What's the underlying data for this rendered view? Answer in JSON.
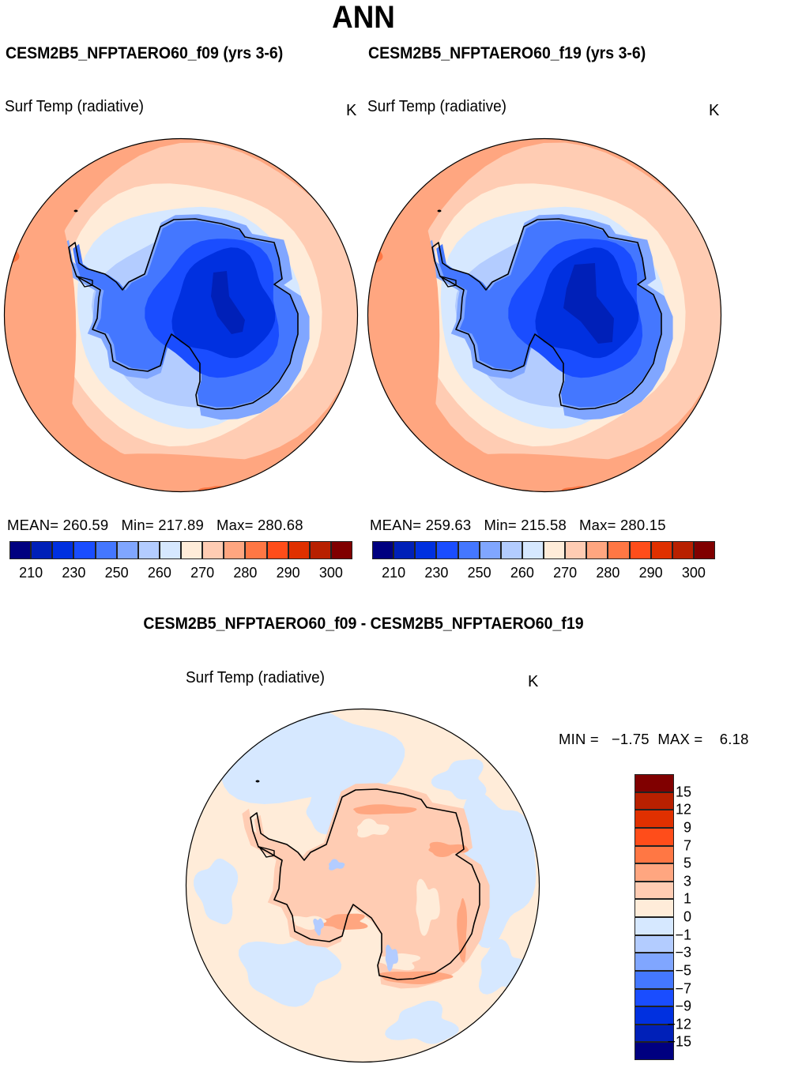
{
  "title": "ANN",
  "panels": [
    {
      "case_title": "CESM2B5_NFPTAERO60_f09 (yrs 3-6)",
      "variable": "Surf Temp (radiative)",
      "units": "K",
      "stats": {
        "mean_label": "MEAN=",
        "mean": "260.59",
        "min_label": "Min=",
        "min": "217.89",
        "max_label": "Max=",
        "max": "280.68"
      }
    },
    {
      "case_title": "CESM2B5_NFPTAERO60_f19 (yrs 3-6)",
      "variable": "Surf Temp (radiative)",
      "units": "K",
      "stats": {
        "mean_label": "MEAN=",
        "mean": "259.63",
        "min_label": "Min=",
        "min": "215.58",
        "max_label": "Max=",
        "max": "280.15"
      }
    }
  ],
  "diff_panel": {
    "title": "CESM2B5_NFPTAERO60_f09 - CESM2B5_NFPTAERO60_f19",
    "variable": "Surf Temp (radiative)",
    "units": "K",
    "minmax_text": "MIN =   −1.75  MAX =    6.18"
  },
  "colorbar_abs": {
    "levels": [
      210,
      220,
      230,
      240,
      250,
      255,
      260,
      265,
      270,
      275,
      280,
      285,
      290,
      295,
      300
    ],
    "labels": [
      "210",
      "230",
      "250",
      "260",
      "270",
      "280",
      "290",
      "300"
    ],
    "label_level_index": [
      0,
      2,
      4,
      6,
      8,
      10,
      12,
      14
    ],
    "colors": [
      "#000080",
      "#0020b8",
      "#0030e0",
      "#1a4dff",
      "#4477ff",
      "#80a6ff",
      "#b3ccff",
      "#d6e8ff",
      "#ffecd9",
      "#ffccb3",
      "#ffa680",
      "#ff7744",
      "#ff4d1a",
      "#e03000",
      "#b82000",
      "#800000"
    ]
  },
  "colorbar_diff": {
    "levels": [
      -15,
      -12,
      -9,
      -7,
      -5,
      -3,
      -1,
      0,
      1,
      3,
      5,
      7,
      9,
      12,
      15
    ],
    "labels": [
      "−15",
      "−12",
      "−9",
      "−7",
      "−5",
      "−3",
      "−1",
      "0",
      "1",
      "3",
      "5",
      "7",
      "9",
      "12",
      "15"
    ],
    "colors": [
      "#000080",
      "#0020b8",
      "#0030e0",
      "#1a4dff",
      "#4477ff",
      "#80a6ff",
      "#b3ccff",
      "#d6e8ff",
      "#ffecd9",
      "#ffccb3",
      "#ffa680",
      "#ff7744",
      "#ff4d1a",
      "#e03000",
      "#b82000",
      "#800000"
    ]
  },
  "chart_data": [
    {
      "type": "heatmap",
      "title": "CESM2B5_NFPTAERO60_f09 (yrs 3-6)",
      "projection": "south-polar stereographic",
      "variable": "Surf Temp (radiative)",
      "units": "K",
      "mean": 260.59,
      "min": 217.89,
      "max": 280.68,
      "contour_levels": [
        210,
        220,
        230,
        240,
        250,
        255,
        260,
        265,
        270,
        275,
        280,
        285,
        290,
        295,
        300
      ],
      "description": "Coldest (<230 K) over East Antarctic plateau, warming outward to ~275-285 K at the edge"
    },
    {
      "type": "heatmap",
      "title": "CESM2B5_NFPTAERO60_f19 (yrs 3-6)",
      "projection": "south-polar stereographic",
      "variable": "Surf Temp (radiative)",
      "units": "K",
      "mean": 259.63,
      "min": 215.58,
      "max": 280.15,
      "contour_levels": [
        210,
        220,
        230,
        240,
        250,
        255,
        260,
        265,
        270,
        275,
        280,
        285,
        290,
        295,
        300
      ]
    },
    {
      "type": "heatmap",
      "title": "CESM2B5_NFPTAERO60_f09 - CESM2B5_NFPTAERO60_f19",
      "projection": "south-polar stereographic",
      "variable": "Surf Temp (radiative)",
      "units": "K",
      "min": -1.75,
      "max": 6.18,
      "contour_levels": [
        -15,
        -12,
        -9,
        -7,
        -5,
        -3,
        -1,
        0,
        1,
        3,
        5,
        7,
        9,
        12,
        15
      ],
      "description": "Mostly 0 to 3 K warmer over Antarctica, near 0 to -1 K over the Southern Ocean"
    }
  ]
}
